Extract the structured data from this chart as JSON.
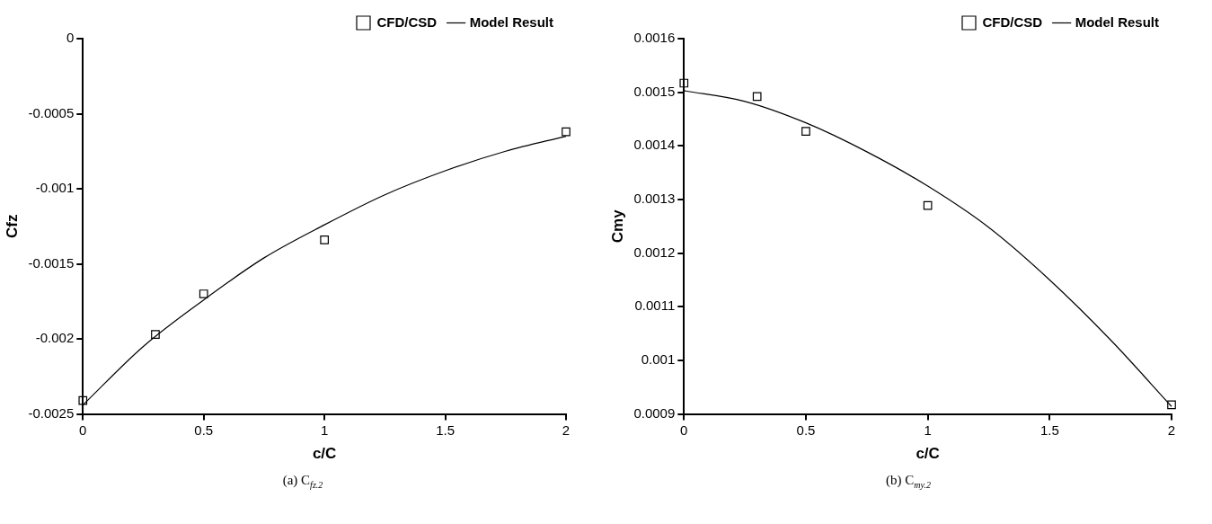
{
  "chart_data": [
    {
      "type": "scatter",
      "xlabel": "c/C",
      "ylabel": "Cfz",
      "annotations": [
        "(a) C$_{fz.2}$"
      ],
      "xlim": [
        0,
        2
      ],
      "xticks": [
        0,
        0.5,
        1,
        1.5,
        2
      ],
      "ylim": [
        -0.0025,
        0
      ],
      "yticks": [
        -0.0025,
        -0.002,
        -0.0015,
        -0.001,
        -0.0005,
        0
      ],
      "grid": false,
      "legend": "top right",
      "series": [
        {
          "name": "CFD/CSD",
          "type": "scatter",
          "marker": "square",
          "color": "#000000",
          "x": [
            0,
            0.3,
            0.5,
            1,
            2
          ],
          "values": [
            -0.00241,
            -0.00197,
            -0.0017,
            -0.00134,
            -0.00062
          ]
        },
        {
          "name": "Model Result",
          "type": "line",
          "marker": "none",
          "line_style": "solid",
          "color": "#000000",
          "x": [
            0,
            0.25,
            0.5,
            0.75,
            1,
            1.25,
            1.5,
            1.75,
            2
          ],
          "values": [
            -0.00244,
            -0.00205,
            -0.00174,
            -0.00146,
            -0.00124,
            -0.00104,
            -0.00088,
            -0.00075,
            -0.00065
          ]
        }
      ]
    },
    {
      "type": "scatter",
      "xlabel": "c/C",
      "ylabel": "Cmy",
      "annotations": [
        "(b) C$_{my.2}$"
      ],
      "xlim": [
        0,
        2
      ],
      "xticks": [
        0,
        0.5,
        1,
        1.5,
        2
      ],
      "ylim": [
        0.0009,
        0.0016
      ],
      "yticks": [
        0.0009,
        0.001,
        0.0011,
        0.0012,
        0.0013,
        0.0014,
        0.0015,
        0.0016
      ],
      "grid": false,
      "legend": "top right",
      "series": [
        {
          "name": "CFD/CSD",
          "type": "scatter",
          "marker": "square",
          "color": "#000000",
          "x": [
            0,
            0.3,
            0.5,
            1,
            2
          ],
          "values": [
            0.001517,
            0.001492,
            0.001427,
            0.001289,
            0.000917
          ]
        },
        {
          "name": "Model Result",
          "type": "line",
          "marker": "none",
          "line_style": "solid",
          "color": "#000000",
          "x": [
            0,
            0.25,
            0.5,
            0.75,
            1,
            1.25,
            1.5,
            1.75,
            2
          ],
          "values": [
            0.001503,
            0.001483,
            0.001443,
            0.001389,
            0.001325,
            0.001248,
            0.00115,
            0.001038,
            0.000914
          ]
        }
      ]
    }
  ]
}
